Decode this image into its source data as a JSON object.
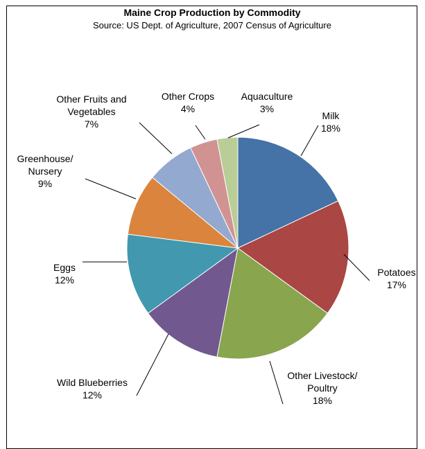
{
  "chart_data": {
    "type": "pie",
    "title": "Maine Crop Production by Commodity",
    "subtitle": "Source: US Dept. of Agriculture, 2007 Census  of Agriculture",
    "slices": [
      {
        "label": "Milk",
        "value": 18,
        "value_label": "18%",
        "color": "#4572A7"
      },
      {
        "label": "Potatoes",
        "value": 17,
        "value_label": "17%",
        "color": "#AA4643"
      },
      {
        "label": "Other Livestock/ Poultry",
        "value": 18,
        "value_label": "18%",
        "color": "#89A54E"
      },
      {
        "label": "Wild Blueberries",
        "value": 12,
        "value_label": "12%",
        "color": "#71588F"
      },
      {
        "label": "Eggs",
        "value": 12,
        "value_label": "12%",
        "color": "#4198AF"
      },
      {
        "label": "Greenhouse/ Nursery",
        "value": 9,
        "value_label": "9%",
        "color": "#DB843D"
      },
      {
        "label": "Other Fruits and Vegetables",
        "value": 7,
        "value_label": "7%",
        "color": "#93A9CF"
      },
      {
        "label": "Other Crops",
        "value": 4,
        "value_label": "4%",
        "color": "#D19392"
      },
      {
        "label": "Aquaculture",
        "value": 3,
        "value_label": "3%",
        "color": "#B9CD96"
      }
    ]
  }
}
